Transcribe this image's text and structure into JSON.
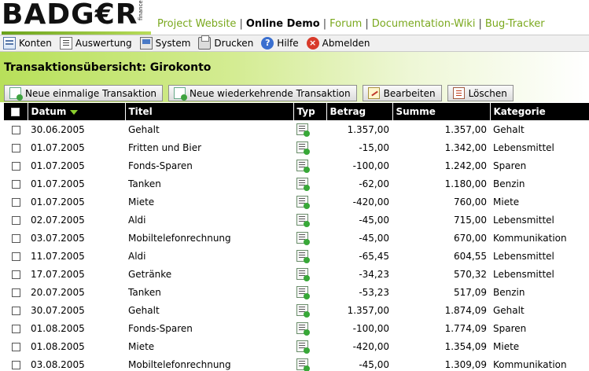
{
  "app": {
    "logo_text": "BADG€R",
    "logo_sub": "finance"
  },
  "toplinks": {
    "project_website": "Project Website",
    "online_demo": "Online Demo",
    "forum": "Forum",
    "doc_wiki": "Documentation-Wiki",
    "bug_tracker": "Bug-Tracker",
    "separator": "|"
  },
  "menu": {
    "konten": "Konten",
    "auswertung": "Auswertung",
    "system": "System",
    "drucken": "Drucken",
    "hilfe": "Hilfe",
    "abmelden": "Abmelden"
  },
  "page": {
    "title": "Transaktionsübersicht: Girokonto"
  },
  "actions": {
    "new_single": "Neue einmalige Transaktion",
    "new_recurring": "Neue wiederkehrende Transaktion",
    "edit": "Bearbeiten",
    "delete": "Löschen"
  },
  "table": {
    "headers": {
      "datum": "Datum",
      "titel": "Titel",
      "typ": "Typ",
      "betrag": "Betrag",
      "summe": "Summe",
      "kategorie": "Kategorie"
    },
    "rows": [
      {
        "datum": "30.06.2005",
        "titel": "Gehalt",
        "betrag": "1.357,00",
        "summe": "1.357,00",
        "kategorie": "Gehalt"
      },
      {
        "datum": "01.07.2005",
        "titel": "Fritten und Bier",
        "betrag": "-15,00",
        "summe": "1.342,00",
        "kategorie": "Lebensmittel"
      },
      {
        "datum": "01.07.2005",
        "titel": "Fonds-Sparen",
        "betrag": "-100,00",
        "summe": "1.242,00",
        "kategorie": "Sparen"
      },
      {
        "datum": "01.07.2005",
        "titel": "Tanken",
        "betrag": "-62,00",
        "summe": "1.180,00",
        "kategorie": "Benzin"
      },
      {
        "datum": "01.07.2005",
        "titel": "Miete",
        "betrag": "-420,00",
        "summe": "760,00",
        "kategorie": "Miete"
      },
      {
        "datum": "02.07.2005",
        "titel": "Aldi",
        "betrag": "-45,00",
        "summe": "715,00",
        "kategorie": "Lebensmittel"
      },
      {
        "datum": "03.07.2005",
        "titel": "Mobiltelefonrechnung",
        "betrag": "-45,00",
        "summe": "670,00",
        "kategorie": "Kommunikation"
      },
      {
        "datum": "11.07.2005",
        "titel": "Aldi",
        "betrag": "-65,45",
        "summe": "604,55",
        "kategorie": "Lebensmittel"
      },
      {
        "datum": "17.07.2005",
        "titel": "Getränke",
        "betrag": "-34,23",
        "summe": "570,32",
        "kategorie": "Lebensmittel"
      },
      {
        "datum": "20.07.2005",
        "titel": "Tanken",
        "betrag": "-53,23",
        "summe": "517,09",
        "kategorie": "Benzin"
      },
      {
        "datum": "30.07.2005",
        "titel": "Gehalt",
        "betrag": "1.357,00",
        "summe": "1.874,09",
        "kategorie": "Gehalt"
      },
      {
        "datum": "01.08.2005",
        "titel": "Fonds-Sparen",
        "betrag": "-100,00",
        "summe": "1.774,09",
        "kategorie": "Sparen"
      },
      {
        "datum": "01.08.2005",
        "titel": "Miete",
        "betrag": "-420,00",
        "summe": "1.354,09",
        "kategorie": "Miete"
      },
      {
        "datum": "03.08.2005",
        "titel": "Mobiltelefonrechnung",
        "betrag": "-45,00",
        "summe": "1.309,09",
        "kategorie": "Kommunikation"
      }
    ]
  },
  "colors": {
    "accent_green": "#7aa81d",
    "header_black": "#000000"
  }
}
